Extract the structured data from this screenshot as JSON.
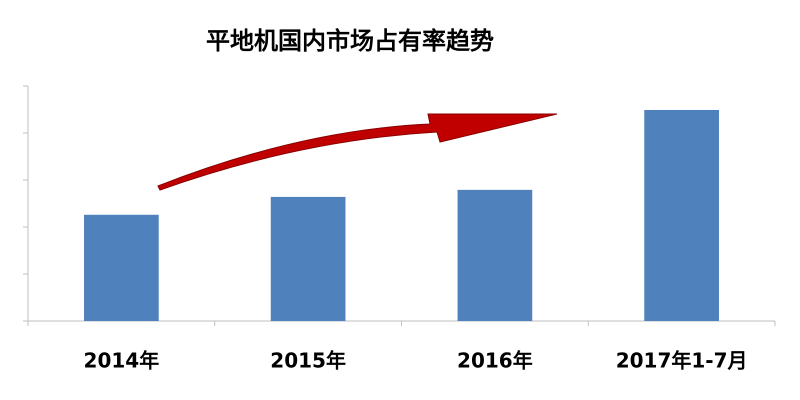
{
  "chart_data": {
    "type": "bar",
    "title": "平地机国内市场占有率趋势",
    "categories": [
      "2014年",
      "2015年",
      "2016年",
      "2017年1-7月"
    ],
    "values": [
      2.26,
      2.64,
      2.79,
      4.49
    ],
    "color": "#4f81bd",
    "ylim": [
      0,
      5
    ],
    "yticks": [
      0,
      1,
      2,
      3,
      4,
      5
    ]
  }
}
